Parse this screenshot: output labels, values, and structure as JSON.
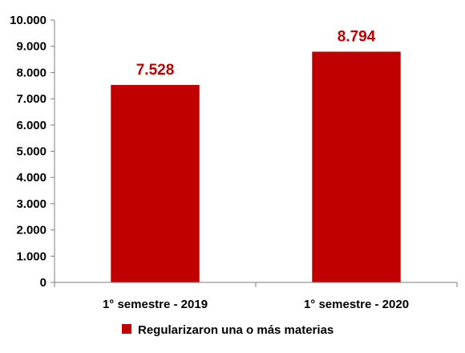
{
  "chart_data": {
    "type": "bar",
    "categories": [
      "1° semestre - 2019",
      "1° semestre - 2020"
    ],
    "series": [
      {
        "name": "Regularizaron una o más materias",
        "values": [
          7528,
          8794
        ]
      }
    ],
    "data_labels": [
      "7.528",
      "8.794"
    ],
    "ylim": [
      0,
      10000
    ],
    "yticks": [
      0,
      1000,
      2000,
      3000,
      4000,
      5000,
      6000,
      7000,
      8000,
      9000,
      10000
    ],
    "ytick_labels": [
      "0",
      "1.000",
      "2.000",
      "3.000",
      "4.000",
      "5.000",
      "6.000",
      "7.000",
      "8.000",
      "9.000",
      "10.000"
    ],
    "legend": {
      "position": "bottom",
      "label": "Regularizaron una o más materias"
    },
    "grid": false,
    "colors": {
      "bar": "#c00000",
      "data_label": "#c00000",
      "axis": "#7f7f7f"
    }
  }
}
